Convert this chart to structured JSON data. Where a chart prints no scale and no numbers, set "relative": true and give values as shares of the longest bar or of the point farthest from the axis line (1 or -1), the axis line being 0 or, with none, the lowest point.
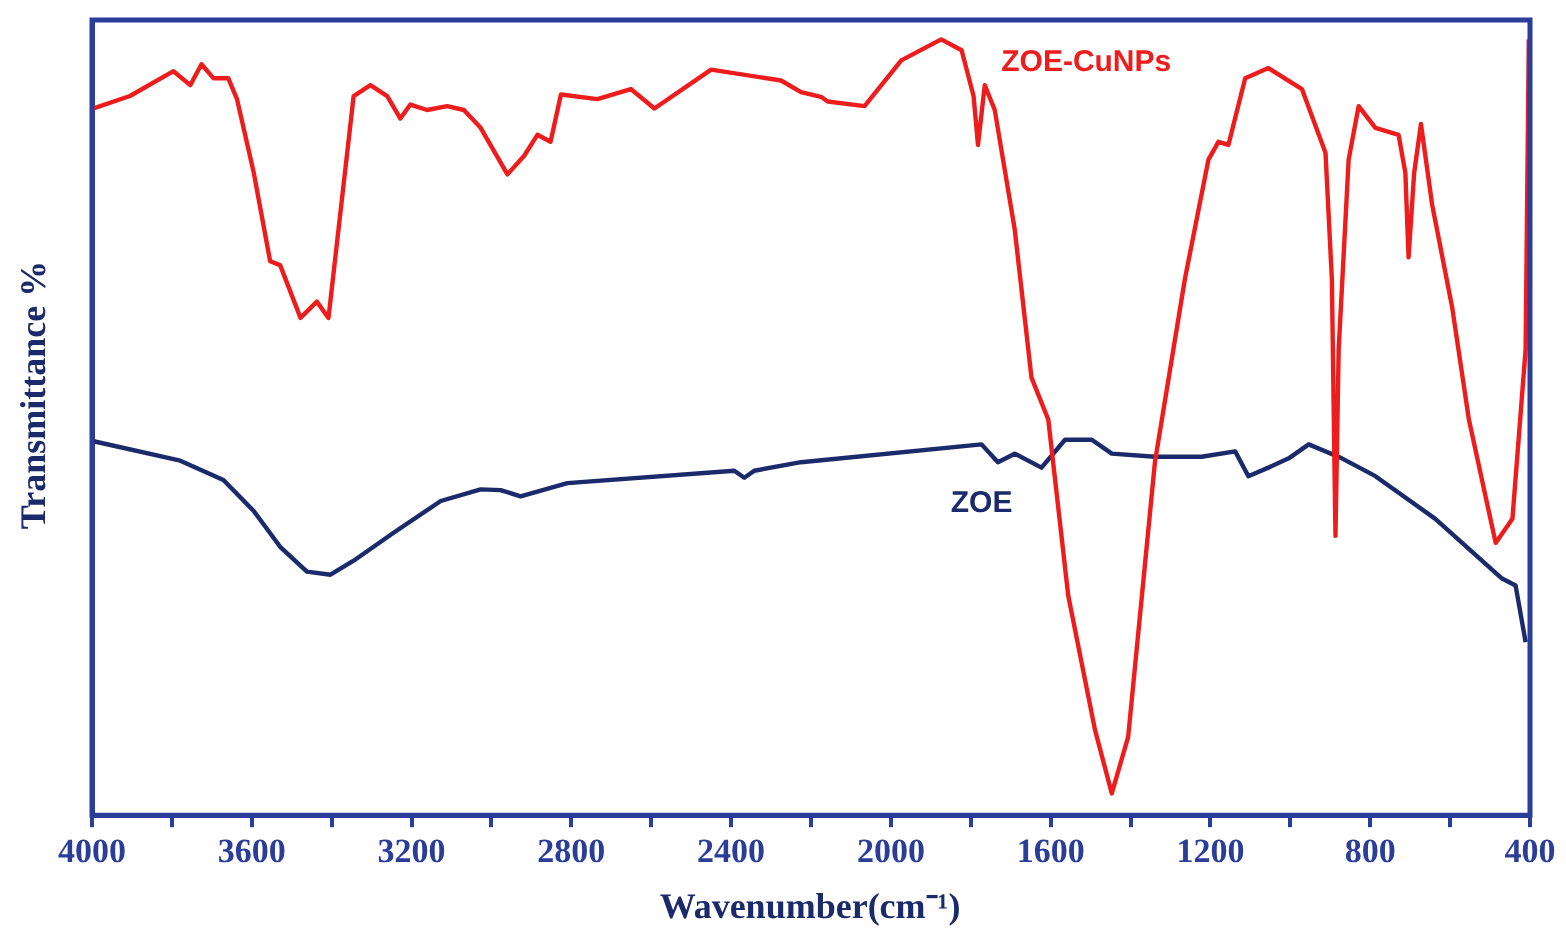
{
  "chart_data": {
    "type": "line",
    "xlabel": "Wavenumber(cm⁻¹)",
    "ylabel": "Transmittance %",
    "relative": true,
    "grid": false,
    "legend": false,
    "marker": "none",
    "line_style": "solid",
    "xlim": [
      4000,
      400
    ],
    "xticks": [
      4000,
      {
        "value": 3800,
        "label": null
      },
      3600,
      {
        "value": 3400,
        "label": null
      },
      3200,
      {
        "value": 3000,
        "label": null
      },
      2800,
      {
        "value": 2600,
        "label": null
      },
      2400,
      {
        "value": 2200,
        "label": null
      },
      2000,
      {
        "value": 1800,
        "label": null
      },
      1600,
      {
        "value": 1400,
        "label": null
      },
      1200,
      {
        "value": 1000,
        "label": null
      },
      800,
      {
        "value": 600,
        "label": null
      },
      400
    ],
    "series": [
      {
        "name": "ZOE-CuNPs",
        "color": "#ee1c1c",
        "x": [
          3996,
          3905,
          3796,
          3754,
          3726,
          3696,
          3659,
          3637,
          3595,
          3554,
          3529,
          3478,
          3437,
          3408,
          3345,
          3303,
          3261,
          3228,
          3203,
          3161,
          3111,
          3069,
          3027,
          2960,
          2918,
          2885,
          2852,
          2826,
          2735,
          2651,
          2592,
          2450,
          2275,
          2225,
          2175,
          2158,
          2066,
          1974,
          1874,
          1823,
          1793,
          1782,
          1765,
          1740,
          1690,
          1648,
          1606,
          1556,
          1489,
          1447,
          1406,
          1339,
          1264,
          1205,
          1180,
          1155,
          1113,
          1055,
          971,
          912,
          896,
          887,
          879,
          854,
          829,
          787,
          729,
          712,
          704,
          690,
          673,
          645,
          595,
          553,
          486,
          444,
          411,
          403
        ],
        "values": [
          0.911,
          0.927,
          0.959,
          0.941,
          0.968,
          0.95,
          0.95,
          0.923,
          0.828,
          0.714,
          0.709,
          0.641,
          0.662,
          0.641,
          0.927,
          0.941,
          0.927,
          0.898,
          0.916,
          0.909,
          0.914,
          0.909,
          0.886,
          0.826,
          0.85,
          0.877,
          0.868,
          0.929,
          0.923,
          0.936,
          0.911,
          0.961,
          0.947,
          0.932,
          0.926,
          0.92,
          0.914,
          0.973,
          1,
          0.986,
          0.927,
          0.864,
          0.941,
          0.909,
          0.755,
          0.564,
          0.51,
          0.283,
          0.11,
          0.028,
          0.101,
          0.455,
          0.691,
          0.845,
          0.868,
          0.864,
          0.95,
          0.963,
          0.936,
          0.854,
          0.691,
          0.36,
          0.6,
          0.845,
          0.914,
          0.886,
          0.877,
          0.828,
          0.719,
          0.828,
          0.891,
          0.787,
          0.655,
          0.51,
          0.351,
          0.382,
          0.6,
          1
        ]
      },
      {
        "name": "ZOE",
        "color": "#1b2a6b",
        "x": [
          3996,
          3779,
          3671,
          3595,
          3529,
          3462,
          3403,
          3345,
          3245,
          3127,
          3027,
          2977,
          2927,
          2810,
          2392,
          2367,
          2342,
          2225,
          1773,
          1732,
          1690,
          1623,
          1564,
          1497,
          1447,
          1339,
          1222,
          1138,
          1105,
          1055,
          1004,
          954,
          871,
          787,
          637,
          470,
          436,
          411
        ],
        "values": [
          0.482,
          0.457,
          0.432,
          0.392,
          0.346,
          0.314,
          0.31,
          0.328,
          0.364,
          0.405,
          0.42,
          0.419,
          0.411,
          0.428,
          0.444,
          0.435,
          0.444,
          0.455,
          0.478,
          0.455,
          0.466,
          0.448,
          0.484,
          0.484,
          0.466,
          0.462,
          0.462,
          0.469,
          0.437,
          0.448,
          0.46,
          0.478,
          0.46,
          0.437,
          0.382,
          0.305,
          0.296,
          0.223
        ]
      }
    ]
  }
}
